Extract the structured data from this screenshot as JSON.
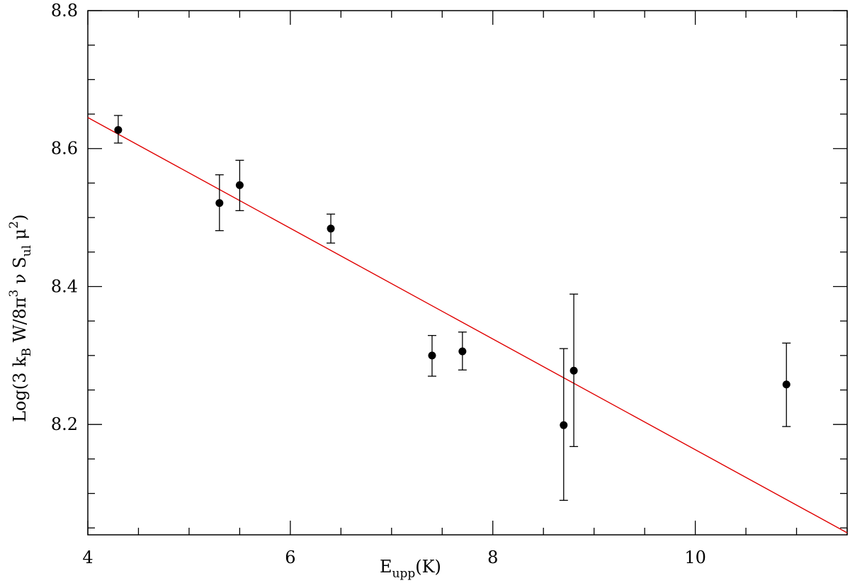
{
  "chart_data": {
    "type": "scatter",
    "xlabel": {
      "base": "E",
      "sub": "upp",
      "rest": "(K)"
    },
    "ylabel": {
      "p1": "Log(3 k",
      "p1_sub": "B",
      "p2": " W/8π",
      "p2_sup": "3",
      "p3": " ν S",
      "p3_sub": "ul",
      "p4": " μ",
      "p4_sup": "2",
      "p5": ")"
    },
    "xlim": [
      4,
      11.5
    ],
    "ylim": [
      8.04,
      8.8
    ],
    "x_ticks": [
      4,
      6,
      8,
      10
    ],
    "x_tick_labels": [
      "4",
      "6",
      "8",
      "10"
    ],
    "y_ticks": [
      8.2,
      8.4,
      8.6,
      8.8
    ],
    "y_tick_labels": [
      "8.2",
      "8.4",
      "8.6",
      "8.8"
    ],
    "x_minor_step": 0.5,
    "y_minor_step": 0.05,
    "points": [
      {
        "x": 4.3,
        "y": 8.627,
        "err_low": 8.608,
        "err_high": 8.648
      },
      {
        "x": 5.3,
        "y": 8.521,
        "err_low": 8.481,
        "err_high": 8.562
      },
      {
        "x": 5.5,
        "y": 8.547,
        "err_low": 8.51,
        "err_high": 8.583
      },
      {
        "x": 6.4,
        "y": 8.484,
        "err_low": 8.463,
        "err_high": 8.505
      },
      {
        "x": 7.4,
        "y": 8.3,
        "err_low": 8.27,
        "err_high": 8.329
      },
      {
        "x": 7.7,
        "y": 8.306,
        "err_low": 8.279,
        "err_high": 8.334
      },
      {
        "x": 8.7,
        "y": 8.199,
        "err_low": 8.09,
        "err_high": 8.31
      },
      {
        "x": 8.8,
        "y": 8.278,
        "err_low": 8.168,
        "err_high": 8.389
      },
      {
        "x": 10.9,
        "y": 8.258,
        "err_low": 8.197,
        "err_high": 8.318
      }
    ],
    "fit_line": {
      "x": [
        4,
        11.5
      ],
      "y": [
        8.645,
        8.043
      ]
    },
    "colors": {
      "points": "#000000",
      "fit": "#e00000",
      "axes": "#000000"
    }
  }
}
